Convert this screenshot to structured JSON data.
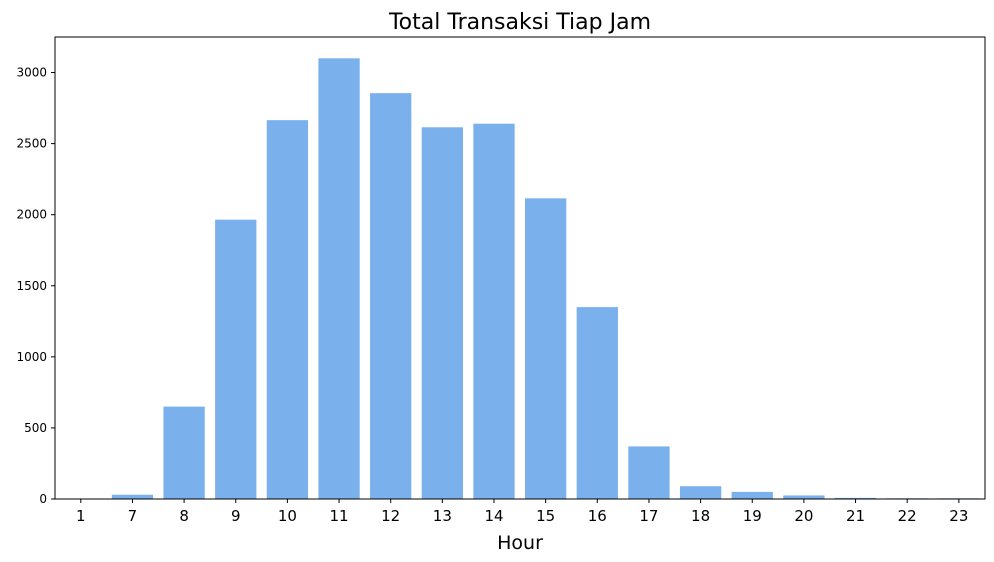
{
  "chart_data": {
    "type": "bar",
    "title": "Total Transaksi Tiap Jam",
    "xlabel": "Hour",
    "ylabel": "",
    "categories": [
      "1",
      "7",
      "8",
      "9",
      "10",
      "11",
      "12",
      "13",
      "14",
      "15",
      "16",
      "17",
      "18",
      "19",
      "20",
      "21",
      "22",
      "23"
    ],
    "values": [
      1,
      30,
      650,
      1965,
      2665,
      3100,
      2855,
      2615,
      2640,
      2115,
      1350,
      370,
      90,
      50,
      25,
      8,
      5,
      5
    ],
    "ylim": [
      0,
      3250
    ],
    "yticks": [
      0,
      500,
      1000,
      1500,
      2000,
      2500,
      3000
    ],
    "grid": false,
    "bar_color": "#7ab1ed"
  }
}
